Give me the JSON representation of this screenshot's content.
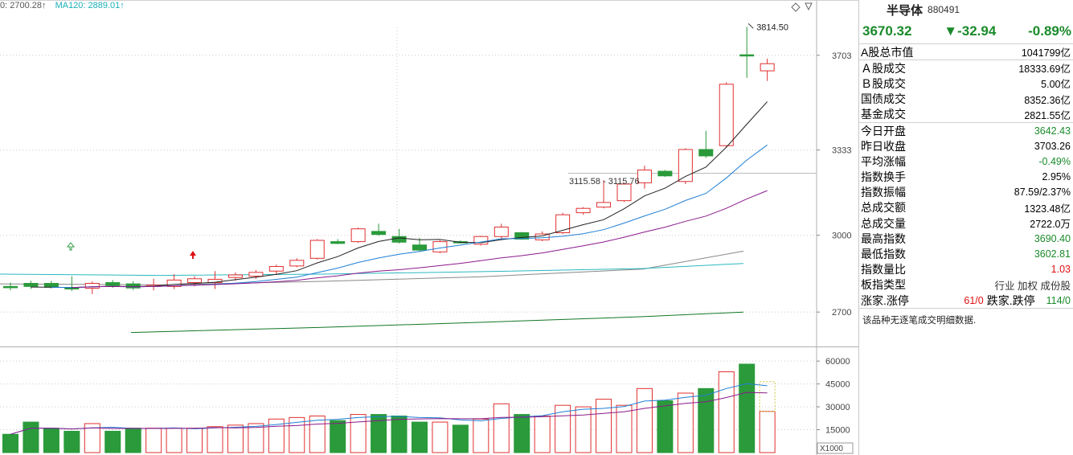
{
  "legend": {
    "ma60": "0: 2700.28↑",
    "ma120": "MA120: 2889.01↑"
  },
  "annotations": {
    "peak": "3814.50",
    "range": "3115.58 - 3115.76"
  },
  "price_axis_labels": [
    "3703",
    "3333",
    "3000",
    "2700"
  ],
  "volume_axis_labels": [
    "60000",
    "45000",
    "30000",
    "15000"
  ],
  "volume_unit": "X1000",
  "colors": {
    "up": "#e03030",
    "down": "#2a9a3a",
    "ma5": "#222222",
    "ma10": "#1f7fd6",
    "ma20": "#8a1a8a",
    "ma60": "#888888",
    "ma120": "#2ab8c0",
    "ma250": "#117722"
  },
  "chart_data": {
    "type": "candlestick",
    "ylim": [
      2600,
      3850
    ],
    "vol_ylim": [
      0,
      68000
    ],
    "candles": [
      {
        "o": 2800,
        "h": 2815,
        "l": 2785,
        "c": 2795,
        "v": 12000
      },
      {
        "o": 2812,
        "h": 2822,
        "l": 2790,
        "c": 2800,
        "v": 20000
      },
      {
        "o": 2812,
        "h": 2822,
        "l": 2792,
        "c": 2797,
        "v": 16000
      },
      {
        "o": 2795,
        "h": 2840,
        "l": 2782,
        "c": 2790,
        "v": 14000
      },
      {
        "o": 2793,
        "h": 2820,
        "l": 2770,
        "c": 2812,
        "v": 19000
      },
      {
        "o": 2815,
        "h": 2825,
        "l": 2795,
        "c": 2804,
        "v": 14000
      },
      {
        "o": 2810,
        "h": 2820,
        "l": 2786,
        "c": 2794,
        "v": 16000
      },
      {
        "o": 2800,
        "h": 2830,
        "l": 2785,
        "c": 2805,
        "v": 16000
      },
      {
        "o": 2800,
        "h": 2848,
        "l": 2790,
        "c": 2825,
        "v": 16000
      },
      {
        "o": 2815,
        "h": 2840,
        "l": 2800,
        "c": 2830,
        "v": 16000
      },
      {
        "o": 2815,
        "h": 2860,
        "l": 2790,
        "c": 2828,
        "v": 17000
      },
      {
        "o": 2835,
        "h": 2855,
        "l": 2822,
        "c": 2845,
        "v": 18000
      },
      {
        "o": 2840,
        "h": 2864,
        "l": 2830,
        "c": 2855,
        "v": 19000
      },
      {
        "o": 2860,
        "h": 2885,
        "l": 2845,
        "c": 2878,
        "v": 22000
      },
      {
        "o": 2880,
        "h": 2910,
        "l": 2875,
        "c": 2902,
        "v": 23000
      },
      {
        "o": 2910,
        "h": 2985,
        "l": 2905,
        "c": 2980,
        "v": 24000
      },
      {
        "o": 2975,
        "h": 2985,
        "l": 2965,
        "c": 2968,
        "v": 21000
      },
      {
        "o": 2975,
        "h": 3030,
        "l": 2970,
        "c": 3025,
        "v": 25000
      },
      {
        "o": 3015,
        "h": 3045,
        "l": 2998,
        "c": 3003,
        "v": 25000
      },
      {
        "o": 2995,
        "h": 3025,
        "l": 2968,
        "c": 2973,
        "v": 24000
      },
      {
        "o": 2962,
        "h": 2990,
        "l": 2935,
        "c": 2942,
        "v": 20000
      },
      {
        "o": 2935,
        "h": 2980,
        "l": 2930,
        "c": 2975,
        "v": 20000
      },
      {
        "o": 2975,
        "h": 2980,
        "l": 2968,
        "c": 2970,
        "v": 18000
      },
      {
        "o": 2965,
        "h": 2998,
        "l": 2960,
        "c": 2995,
        "v": 22000
      },
      {
        "o": 2995,
        "h": 3045,
        "l": 2985,
        "c": 3032,
        "v": 32000
      },
      {
        "o": 3010,
        "h": 3013,
        "l": 2982,
        "c": 2985,
        "v": 25000
      },
      {
        "o": 2982,
        "h": 3015,
        "l": 2977,
        "c": 3005,
        "v": 24000
      },
      {
        "o": 3010,
        "h": 3088,
        "l": 3005,
        "c": 3080,
        "v": 31000
      },
      {
        "o": 3088,
        "h": 3110,
        "l": 3080,
        "c": 3105,
        "v": 30000
      },
      {
        "o": 3110,
        "h": 3215,
        "l": 3105,
        "c": 3128,
        "v": 35000
      },
      {
        "o": 3135,
        "h": 3205,
        "l": 3130,
        "c": 3200,
        "v": 31000
      },
      {
        "o": 3205,
        "h": 3272,
        "l": 3182,
        "c": 3255,
        "v": 42000
      },
      {
        "o": 3250,
        "h": 3255,
        "l": 3228,
        "c": 3232,
        "v": 34000
      },
      {
        "o": 3210,
        "h": 3340,
        "l": 3200,
        "c": 3335,
        "v": 39000
      },
      {
        "o": 3335,
        "h": 3408,
        "l": 3302,
        "c": 3310,
        "v": 42000
      },
      {
        "o": 3350,
        "h": 3598,
        "l": 3345,
        "c": 3590,
        "v": 53000
      },
      {
        "o": 3705,
        "h": 3814.5,
        "l": 3615,
        "c": 3703,
        "v": 58000
      },
      {
        "o": 3642.43,
        "h": 3690.4,
        "l": 3602.81,
        "c": 3670.32,
        "v": 27000
      }
    ]
  },
  "panel": {
    "name": "半导体",
    "code": "880491",
    "price": "3670.32",
    "change": "▼-32.94",
    "pct": "-0.89%",
    "rows": [
      {
        "k": "A股总市值",
        "v": "1041799亿",
        "c": ""
      },
      {
        "k": "Ａ股成交",
        "v": "18333.69亿",
        "c": ""
      },
      {
        "k": "Ｂ股成交",
        "v": "5.00亿",
        "c": ""
      },
      {
        "k": "国债成交",
        "v": "8352.36亿",
        "c": ""
      },
      {
        "k": "基金成交",
        "v": "2821.55亿",
        "c": ""
      },
      {
        "k": "今日开盘",
        "v": "3642.43",
        "c": "green"
      },
      {
        "k": "昨日收盘",
        "v": "3703.26",
        "c": ""
      },
      {
        "k": "平均涨幅",
        "v": "-0.49%",
        "c": "green"
      },
      {
        "k": "指数换手",
        "v": "2.95%",
        "c": ""
      },
      {
        "k": "指数振幅",
        "v": "87.59/2.37%",
        "c": ""
      },
      {
        "k": "总成交额",
        "v": "1323.48亿",
        "c": ""
      },
      {
        "k": "总成交量",
        "v": "2722.0万",
        "c": ""
      },
      {
        "k": "最高指数",
        "v": "3690.40",
        "c": "green"
      },
      {
        "k": "最低指数",
        "v": "3602.81",
        "c": "green"
      },
      {
        "k": "指数量比",
        "v": "1.03",
        "c": "red"
      },
      {
        "k": "板指类型",
        "v": "行业 加权 成份股",
        "c": ""
      }
    ],
    "limit": {
      "k": "涨家.涨停",
      "v1": "61/0",
      "k2": "跌家.跌停",
      "v2": "114/0"
    },
    "note": "该品种无逐笔成交明细数据."
  }
}
